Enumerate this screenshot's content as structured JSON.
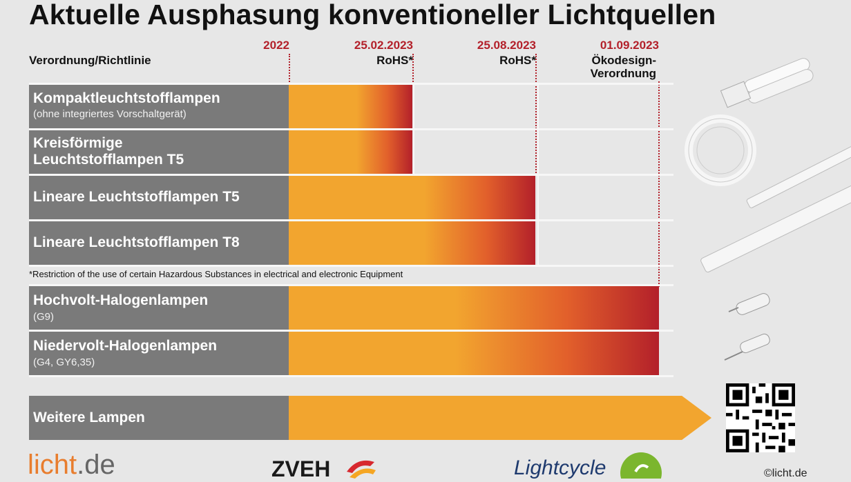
{
  "chart_data": {
    "type": "bar",
    "title": "Aktuelle Ausphasung konventioneller Lichtquellen",
    "column_label": "Verordnung/Richtlinie",
    "dates": [
      {
        "date": "2022",
        "sub": ""
      },
      {
        "date": "25.02.2023",
        "sub": "RoHS*"
      },
      {
        "date": "25.08.2023",
        "sub": "RoHS*"
      },
      {
        "date": "01.09.2023",
        "sub": "Ökodesign-\nVerordnung"
      }
    ],
    "series": [
      {
        "label": "Kompaktleuchtstofflampen",
        "sublabel": "(ohne integriertes Vorschaltgerät)",
        "end": "25.02.2023"
      },
      {
        "label": "Kreisförmige\nLeuchtstofflampen T5",
        "sublabel": "",
        "end": "25.02.2023"
      },
      {
        "label": "Lineare Leuchtstofflampen T5",
        "sublabel": "",
        "end": "25.08.2023"
      },
      {
        "label": "Lineare Leuchtstofflampen T8",
        "sublabel": "",
        "end": "25.08.2023"
      },
      {
        "label": "Hochvolt-Halogenlampen",
        "sublabel": "(G9)",
        "end": "01.09.2023"
      },
      {
        "label": "Niedervolt-Halogenlampen",
        "sublabel": "(G4, GY6,35)",
        "end": "01.09.2023"
      },
      {
        "label": "Weitere Lampen",
        "sublabel": "",
        "end": "ongoing"
      }
    ],
    "footnote": "*Restriction of the use of certain Hazardous Substances in electrical and electronic Equipment"
  },
  "logos": {
    "licht_a": "licht",
    "licht_b": ".de",
    "zveh": "ZVEH",
    "lightcycle": "Lightcycle"
  },
  "copyright": "©licht.de",
  "colors": {
    "bar_start": "#f2a52f",
    "bar_end": "#b3202a",
    "label_bg": "#7a7a7a",
    "date_color": "#b3202a"
  }
}
